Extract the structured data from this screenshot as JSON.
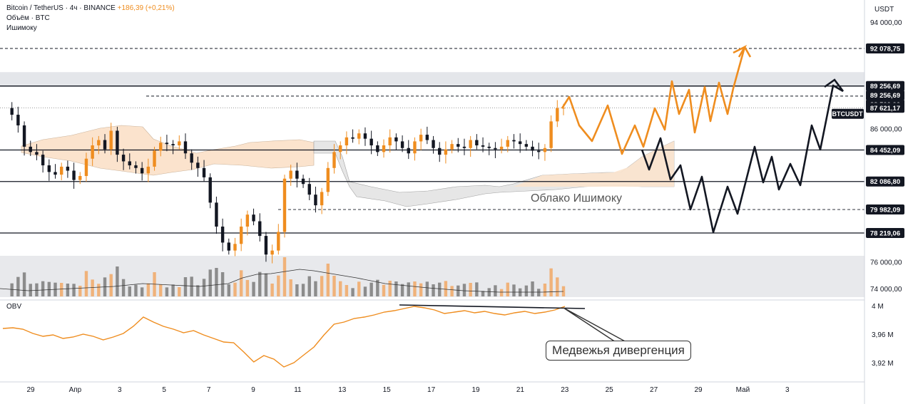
{
  "legend": {
    "symbol": "Bitcoin / TetherUS · 4ч · BINANCE",
    "change": "+186,39 (+0,21%)",
    "volume": "Объём · BTC",
    "indicator": "Ишимоку"
  },
  "obv_label": "OBV",
  "annotations": {
    "cloud": "Облако Ишимоку",
    "divergence": "Медвежья дивергенция"
  },
  "colors": {
    "up": "#ef8d1f",
    "down": "#131722",
    "cloud_bull": "#fbe3cd",
    "cloud_bear": "#e6e6e6",
    "line": "#131722"
  },
  "chart_data": {
    "type": "candlestick",
    "price_axis": {
      "currency": "USDT",
      "ticks": [
        "94 000,00",
        "86 000,00",
        "76 000,00",
        "74 000,00"
      ],
      "tick_values": [
        94000,
        86000,
        76000,
        74000
      ],
      "ylim": [
        73500,
        95000
      ]
    },
    "levels": [
      {
        "label": "92 078,75",
        "value": 92078.75,
        "style": "dashed"
      },
      {
        "label": "89 256,69",
        "value": 89256.69,
        "style": "solid"
      },
      {
        "label": "89 256,69",
        "value": 89256.69,
        "style": "solid"
      },
      {
        "label": "88 500,00",
        "value": 88500,
        "style": "dashed"
      },
      {
        "label": "BTCUSDT",
        "value": 87621.17,
        "style": "price"
      },
      {
        "label": "87 621,17",
        "value": 87621.17,
        "style": "dotted"
      },
      {
        "label": "84 452,09",
        "value": 84452.09,
        "style": "solid"
      },
      {
        "label": "82 086,80",
        "value": 82086.8,
        "style": "solid"
      },
      {
        "label": "79 982,09",
        "value": 79982.09,
        "style": "dashed"
      },
      {
        "label": "78 219,06",
        "value": 78219.06,
        "style": "solid"
      }
    ],
    "resistance_zone": [
      89256.69,
      90300
    ],
    "x_ticks": [
      "29",
      "Апр",
      "3",
      "5",
      "7",
      "9",
      "11",
      "13",
      "15",
      "17",
      "19",
      "21",
      "23",
      "25",
      "27",
      "29",
      "Май",
      "3"
    ],
    "close_series": [
      87600,
      87100,
      86300,
      84700,
      84300,
      84100,
      83300,
      82800,
      82600,
      83200,
      82900,
      82200,
      82500,
      83800,
      84800,
      85200,
      84500,
      85900,
      84100,
      83600,
      83300,
      83100,
      82700,
      83200,
      84400,
      85000,
      84900,
      84800,
      85100,
      84200,
      83500,
      83100,
      82400,
      80500,
      78700,
      77500,
      76900,
      77400,
      78700,
      79600,
      79100,
      78000,
      76600,
      76900,
      78300,
      82300,
      82900,
      82300,
      81900,
      81100,
      80300,
      81300,
      83100,
      84300,
      84800,
      85400,
      85300,
      85700,
      85300,
      84800,
      84300,
      84800,
      85400,
      85100,
      84600,
      84200,
      85100,
      85600,
      85200,
      84600,
      84100,
      84500,
      84900,
      84700,
      84600,
      85200,
      84800,
      84700,
      84600,
      84500,
      84700,
      85200,
      85100,
      84900,
      84700,
      84400,
      84300,
      84600,
      86600,
      87600,
      87621
    ],
    "obv_axis": {
      "ticks": [
        "4 M",
        "3,96 M",
        "3,92 M"
      ],
      "tick_values": [
        4.0,
        3.96,
        3.92
      ]
    },
    "obv_series": [
      3.969,
      3.97,
      3.968,
      3.962,
      3.958,
      3.96,
      3.955,
      3.957,
      3.961,
      3.958,
      3.953,
      3.957,
      3.962,
      3.972,
      3.985,
      3.978,
      3.972,
      3.968,
      3.963,
      3.966,
      3.96,
      3.955,
      3.95,
      3.949,
      3.936,
      3.922,
      3.931,
      3.926,
      3.915,
      3.921,
      3.932,
      3.943,
      3.96,
      3.975,
      3.978,
      3.983,
      3.985,
      3.988,
      3.992,
      3.994,
      3.997,
      4.0,
      3.998,
      3.995,
      3.99,
      3.992,
      3.994,
      3.991,
      3.993,
      3.99,
      3.988,
      3.991,
      3.993,
      3.99,
      3.992,
      3.995,
      4.0
    ],
    "projections": [
      {
        "name": "",
        "color": "#ef8d1f"
      },
      {
        "name": "",
        "color": "#131722"
      }
    ]
  }
}
